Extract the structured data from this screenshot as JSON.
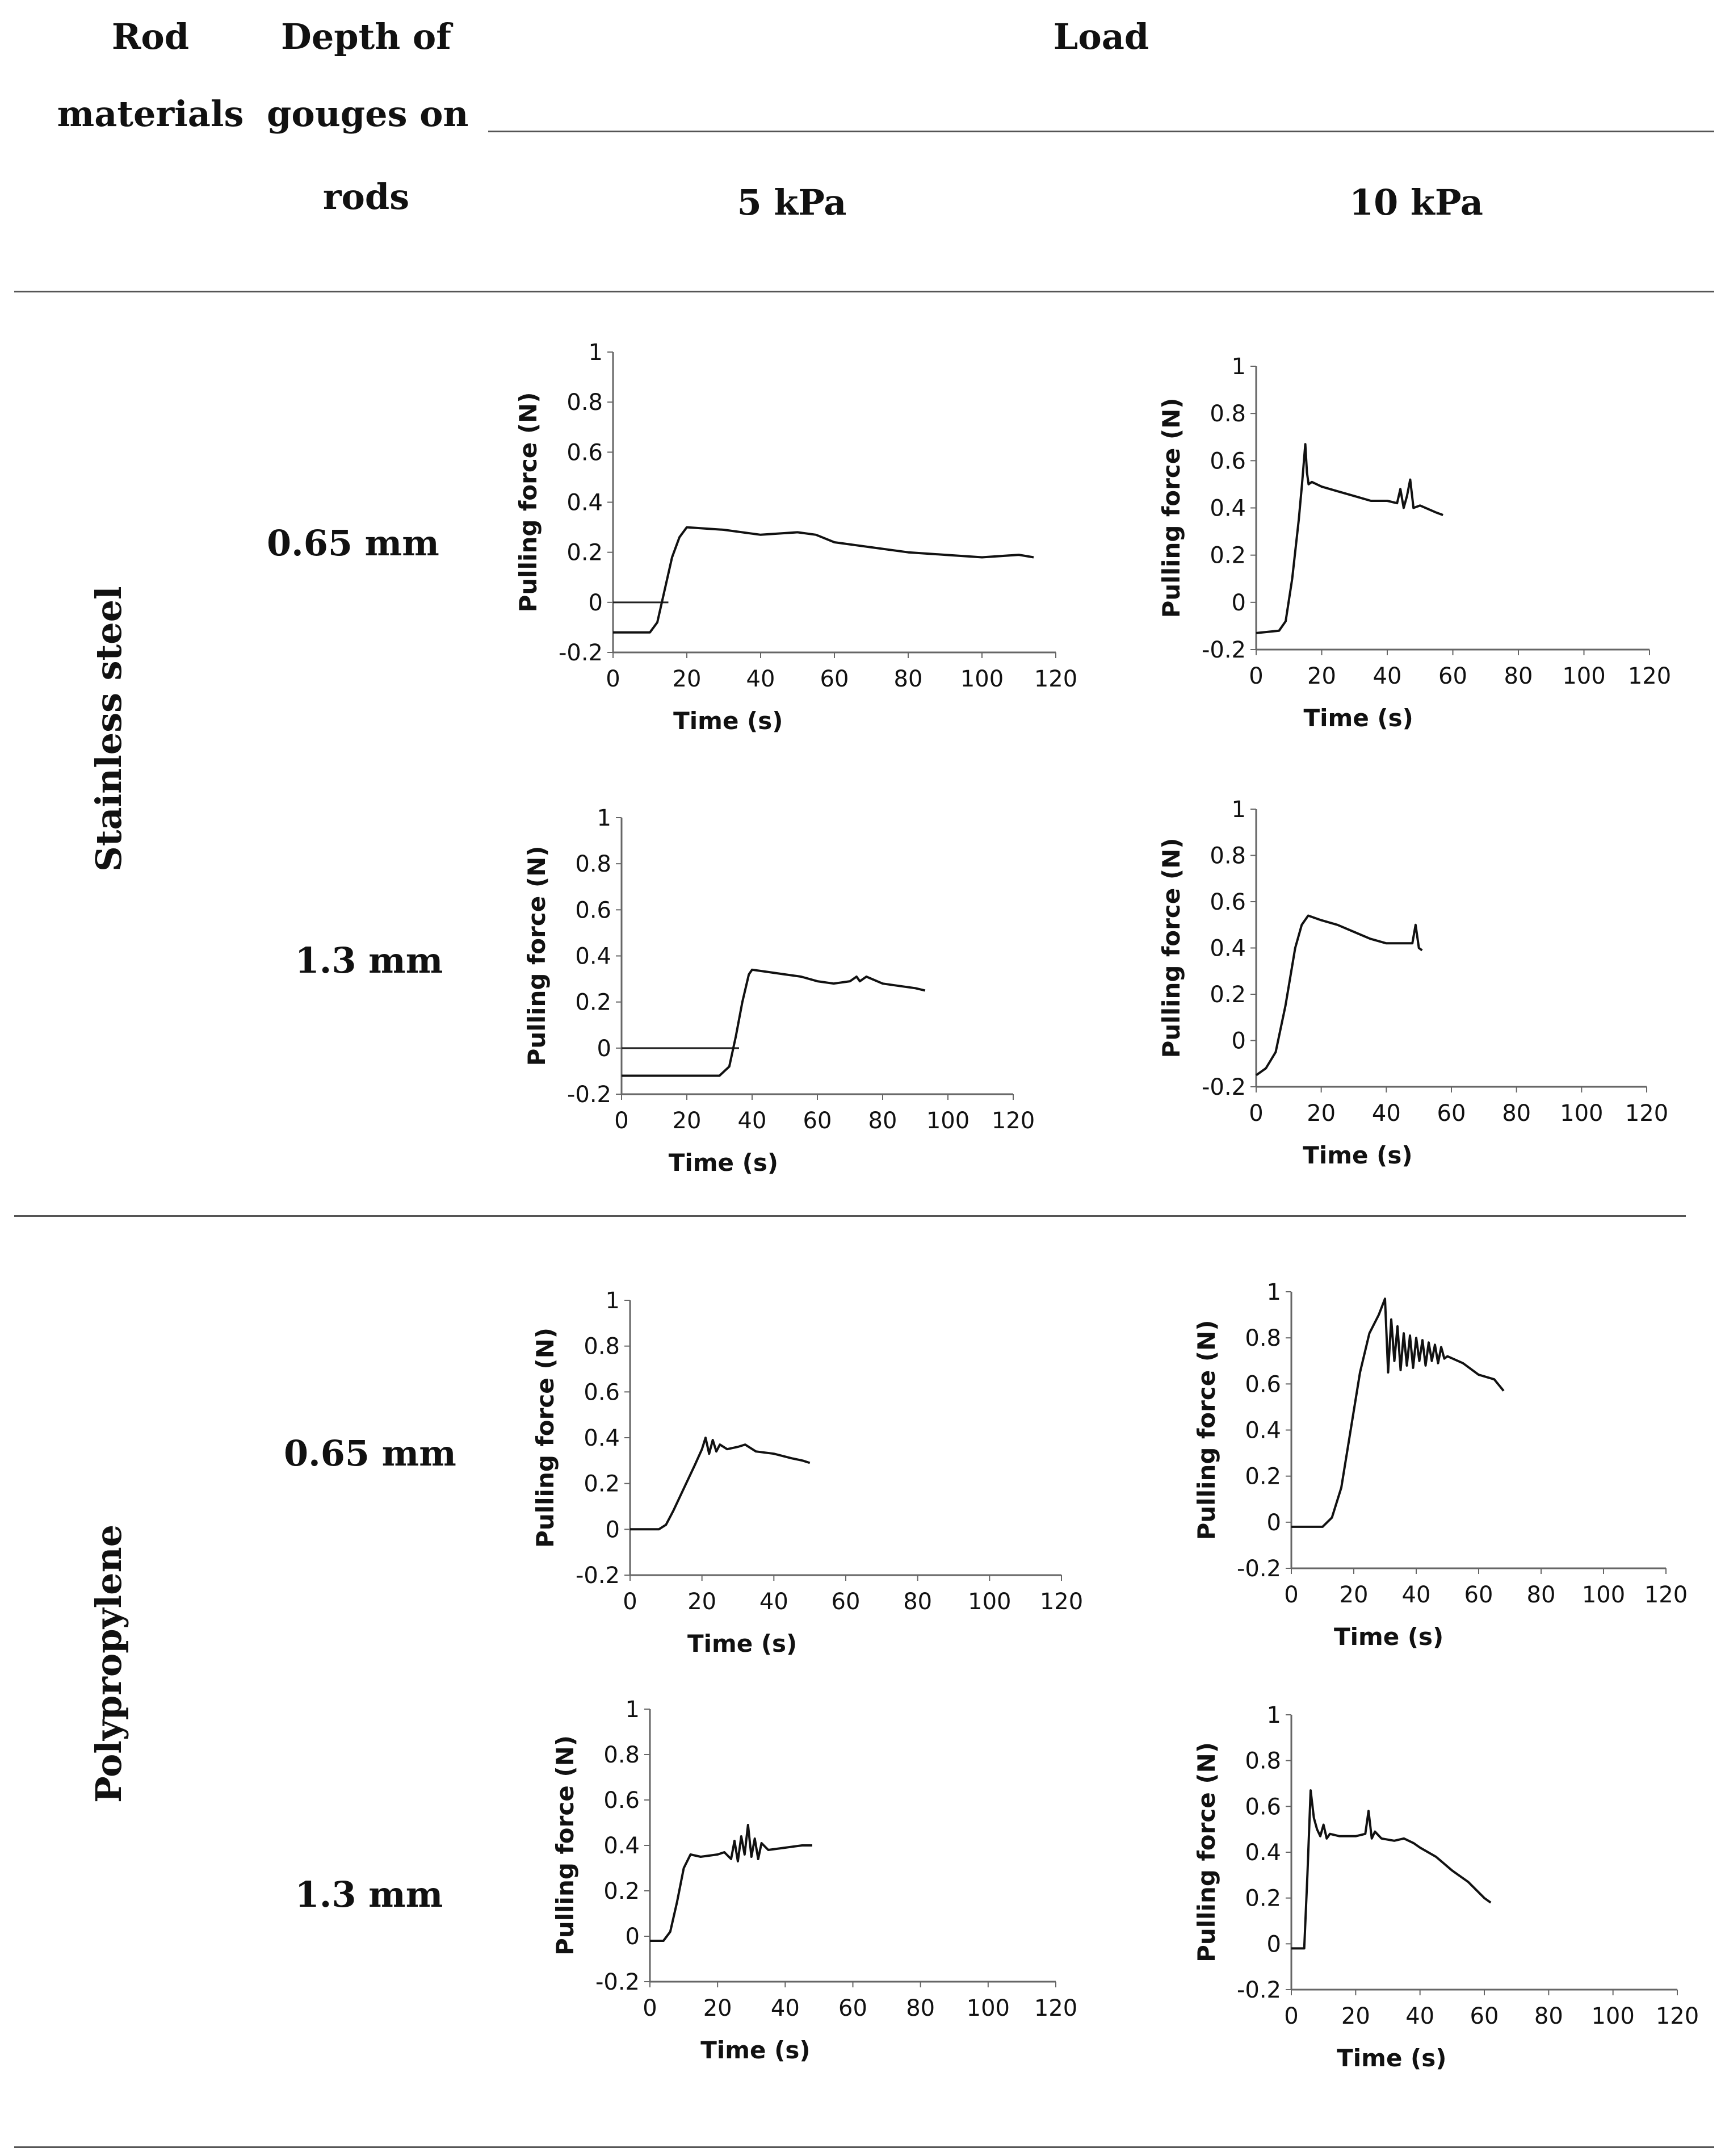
{
  "header": {
    "rod_materials": [
      "Rod",
      "materials"
    ],
    "depth_of_gouges": [
      "Depth of",
      "gouges on",
      "rods"
    ],
    "load": "Load",
    "load_5": "5 kPa",
    "load_10": "10 kPa"
  },
  "materials": [
    "Stainless steel",
    "Polypropylene"
  ],
  "depths": [
    "0.65 mm",
    "1.3 mm",
    "0.65 mm",
    "1.3 mm"
  ],
  "chart_data": [
    {
      "type": "line",
      "material": "Stainless steel",
      "depth": "0.65 mm",
      "load": "5 kPa",
      "xlabel": "Time (s)",
      "ylabel": "Pulling force (N)",
      "xlim": [
        0,
        120
      ],
      "ylim": [
        -0.2,
        1
      ],
      "xticks": [
        "0",
        "20",
        "40",
        "60",
        "80",
        "100",
        "120"
      ],
      "yticks": [
        "-0.2",
        "0",
        "0.2",
        "0.4",
        "0.6",
        "0.8",
        "1"
      ],
      "zero_line_x_max": 15,
      "x": [
        0,
        10,
        12,
        14,
        16,
        18,
        20,
        30,
        40,
        50,
        55,
        60,
        70,
        80,
        90,
        100,
        110,
        114
      ],
      "y": [
        -0.12,
        -0.12,
        -0.08,
        0.05,
        0.18,
        0.26,
        0.3,
        0.29,
        0.27,
        0.28,
        0.27,
        0.24,
        0.22,
        0.2,
        0.19,
        0.18,
        0.19,
        0.18
      ]
    },
    {
      "type": "line",
      "material": "Stainless steel",
      "depth": "0.65 mm",
      "load": "10 kPa",
      "xlabel": "Time (s)",
      "ylabel": "Pulling force (N)",
      "xlim": [
        0,
        120
      ],
      "ylim": [
        -0.2,
        1
      ],
      "xticks": [
        "0",
        "20",
        "40",
        "60",
        "80",
        "100",
        "120"
      ],
      "yticks": [
        "-0.2",
        "0",
        "0.2",
        "0.4",
        "0.6",
        "0.8",
        "1"
      ],
      "zero_line_x_max": 0,
      "x": [
        0,
        7,
        9,
        11,
        13,
        14,
        15,
        15.5,
        16,
        17,
        20,
        25,
        30,
        35,
        40,
        43,
        44,
        45,
        46,
        47,
        48,
        50,
        55,
        57
      ],
      "y": [
        -0.13,
        -0.12,
        -0.08,
        0.1,
        0.35,
        0.5,
        0.67,
        0.55,
        0.5,
        0.51,
        0.49,
        0.47,
        0.45,
        0.43,
        0.43,
        0.42,
        0.48,
        0.4,
        0.45,
        0.52,
        0.4,
        0.41,
        0.38,
        0.37
      ]
    },
    {
      "type": "line",
      "material": "Stainless steel",
      "depth": "1.3 mm",
      "load": "5 kPa",
      "xlabel": "Time (s)",
      "ylabel": "Pulling force (N)",
      "xlim": [
        0,
        120
      ],
      "ylim": [
        -0.2,
        1
      ],
      "xticks": [
        "0",
        "20",
        "40",
        "60",
        "80",
        "100",
        "120"
      ],
      "yticks": [
        "-0.2",
        "0",
        "0.2",
        "0.4",
        "0.6",
        "0.8",
        "1"
      ],
      "zero_line_x_max": 36,
      "x": [
        0,
        30,
        33,
        35,
        37,
        39,
        40,
        45,
        50,
        55,
        60,
        65,
        70,
        72,
        73,
        75,
        80,
        85,
        90,
        93
      ],
      "y": [
        -0.12,
        -0.12,
        -0.08,
        0.05,
        0.2,
        0.32,
        0.34,
        0.33,
        0.32,
        0.31,
        0.29,
        0.28,
        0.29,
        0.31,
        0.29,
        0.31,
        0.28,
        0.27,
        0.26,
        0.25
      ]
    },
    {
      "type": "line",
      "material": "Stainless steel",
      "depth": "1.3 mm",
      "load": "10 kPa",
      "xlabel": "Time (s)",
      "ylabel": "Pulling force (N)",
      "xlim": [
        0,
        120
      ],
      "ylim": [
        -0.2,
        1
      ],
      "xticks": [
        "0",
        "20",
        "40",
        "60",
        "80",
        "100",
        "120"
      ],
      "yticks": [
        "-0.2",
        "0",
        "0.2",
        "0.4",
        "0.6",
        "0.8",
        "1"
      ],
      "zero_line_x_max": 0,
      "x": [
        0,
        3,
        6,
        9,
        12,
        14,
        16,
        20,
        25,
        30,
        35,
        40,
        45,
        48,
        49,
        50,
        51
      ],
      "y": [
        -0.15,
        -0.12,
        -0.05,
        0.15,
        0.4,
        0.5,
        0.54,
        0.52,
        0.5,
        0.47,
        0.44,
        0.42,
        0.42,
        0.42,
        0.5,
        0.4,
        0.39
      ]
    },
    {
      "type": "line",
      "material": "Polypropylene",
      "depth": "0.65 mm",
      "load": "5 kPa",
      "xlabel": "Time (s)",
      "ylabel": "Pulling force (N)",
      "xlim": [
        0,
        120
      ],
      "ylim": [
        -0.2,
        1
      ],
      "xticks": [
        "0",
        "20",
        "40",
        "60",
        "80",
        "100",
        "120"
      ],
      "yticks": [
        "-0.2",
        "0",
        "0.2",
        "0.4",
        "0.6",
        "0.8",
        "1"
      ],
      "zero_line_x_max": 0,
      "x": [
        0,
        8,
        10,
        12,
        15,
        18,
        20,
        21,
        22,
        23,
        24,
        25,
        27,
        30,
        32,
        35,
        40,
        45,
        48,
        50
      ],
      "y": [
        0,
        0,
        0.02,
        0.08,
        0.18,
        0.28,
        0.35,
        0.4,
        0.33,
        0.39,
        0.34,
        0.37,
        0.35,
        0.36,
        0.37,
        0.34,
        0.33,
        0.31,
        0.3,
        0.29
      ]
    },
    {
      "type": "line",
      "material": "Polypropylene",
      "depth": "0.65 mm",
      "load": "10 kPa",
      "xlabel": "Time (s)",
      "ylabel": "Pulling force (N)",
      "xlim": [
        0,
        120
      ],
      "ylim": [
        -0.2,
        1
      ],
      "xticks": [
        "0",
        "20",
        "40",
        "60",
        "80",
        "100",
        "120"
      ],
      "yticks": [
        "-0.2",
        "0",
        "0.2",
        "0.4",
        "0.6",
        "0.8",
        "1"
      ],
      "zero_line_x_max": 0,
      "x": [
        0,
        10,
        13,
        16,
        19,
        22,
        25,
        28,
        30,
        31,
        32,
        33,
        34,
        35,
        36,
        37,
        38,
        39,
        40,
        41,
        42,
        43,
        44,
        45,
        46,
        47,
        48,
        49,
        50,
        55,
        60,
        65,
        68
      ],
      "y": [
        -0.02,
        -0.02,
        0.02,
        0.15,
        0.4,
        0.65,
        0.82,
        0.9,
        0.97,
        0.65,
        0.88,
        0.7,
        0.85,
        0.66,
        0.82,
        0.68,
        0.81,
        0.67,
        0.8,
        0.7,
        0.79,
        0.68,
        0.78,
        0.7,
        0.77,
        0.69,
        0.76,
        0.71,
        0.72,
        0.69,
        0.64,
        0.62,
        0.57
      ]
    },
    {
      "type": "line",
      "material": "Polypropylene",
      "depth": "1.3 mm",
      "load": "5 kPa",
      "xlabel": "Time (s)",
      "ylabel": "Pulling force (N)",
      "xlim": [
        0,
        120
      ],
      "ylim": [
        -0.2,
        1
      ],
      "xticks": [
        "0",
        "20",
        "40",
        "60",
        "80",
        "100",
        "120"
      ],
      "yticks": [
        "-0.2",
        "0",
        "0.2",
        "0.4",
        "0.6",
        "0.8",
        "1"
      ],
      "zero_line_x_max": 0,
      "x": [
        0,
        4,
        6,
        8,
        10,
        12,
        15,
        20,
        22,
        24,
        25,
        26,
        27,
        28,
        29,
        30,
        31,
        32,
        33,
        35,
        40,
        45,
        48
      ],
      "y": [
        -0.02,
        -0.02,
        0.02,
        0.15,
        0.3,
        0.36,
        0.35,
        0.36,
        0.37,
        0.34,
        0.42,
        0.33,
        0.44,
        0.36,
        0.49,
        0.35,
        0.43,
        0.34,
        0.41,
        0.38,
        0.39,
        0.4,
        0.4
      ]
    },
    {
      "type": "line",
      "material": "Polypropylene",
      "depth": "1.3 mm",
      "load": "10 kPa",
      "xlabel": "Time (s)",
      "ylabel": "Pulling force (N)",
      "xlim": [
        0,
        120
      ],
      "ylim": [
        -0.2,
        1
      ],
      "xticks": [
        "0",
        "20",
        "40",
        "60",
        "80",
        "100",
        "120"
      ],
      "yticks": [
        "-0.2",
        "0",
        "0.2",
        "0.4",
        "0.6",
        "0.8",
        "1"
      ],
      "zero_line_x_max": 0,
      "x": [
        0,
        4,
        5,
        6,
        7,
        8,
        9,
        10,
        11,
        12,
        15,
        20,
        23,
        24,
        25,
        26,
        28,
        32,
        35,
        38,
        40,
        45,
        50,
        55,
        60,
        62
      ],
      "y": [
        -0.02,
        -0.02,
        0.3,
        0.67,
        0.55,
        0.5,
        0.47,
        0.52,
        0.46,
        0.48,
        0.47,
        0.47,
        0.48,
        0.58,
        0.46,
        0.49,
        0.46,
        0.45,
        0.46,
        0.44,
        0.42,
        0.38,
        0.32,
        0.27,
        0.2,
        0.18
      ]
    }
  ]
}
